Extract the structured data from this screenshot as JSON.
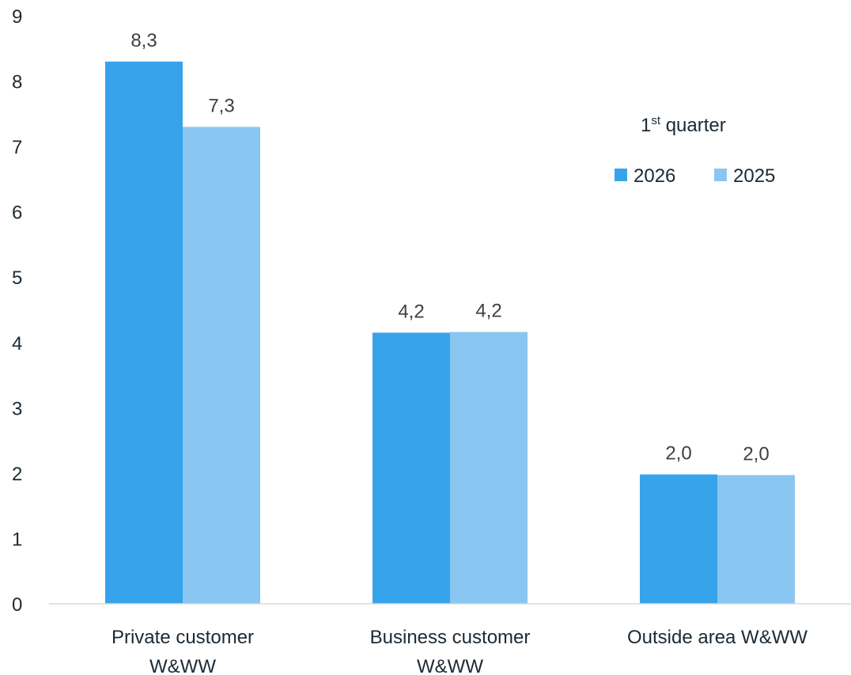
{
  "chart_data": {
    "type": "bar",
    "categories": [
      [
        "Private customer",
        "W&WW"
      ],
      [
        "Business customer",
        "W&WW"
      ],
      [
        "Outside area W&WW"
      ]
    ],
    "series": [
      {
        "name": "2026",
        "color": "#36a3ea",
        "values": [
          8.3,
          4.15,
          1.98
        ],
        "labels": [
          "8,3",
          "4,2",
          "2,0"
        ]
      },
      {
        "name": "2025",
        "color": "#89c6f1",
        "values": [
          7.3,
          4.16,
          1.97
        ],
        "labels": [
          "7,3",
          "4,2",
          "2,0"
        ]
      }
    ],
    "legend_title": {
      "main": "1",
      "sup": "st",
      "rest": " quarter"
    },
    "legend_position": "right",
    "ylim": [
      0,
      9
    ],
    "yticks": [
      "0",
      "1",
      "2",
      "3",
      "4",
      "5",
      "6",
      "7",
      "8",
      "9"
    ],
    "grid": false
  }
}
